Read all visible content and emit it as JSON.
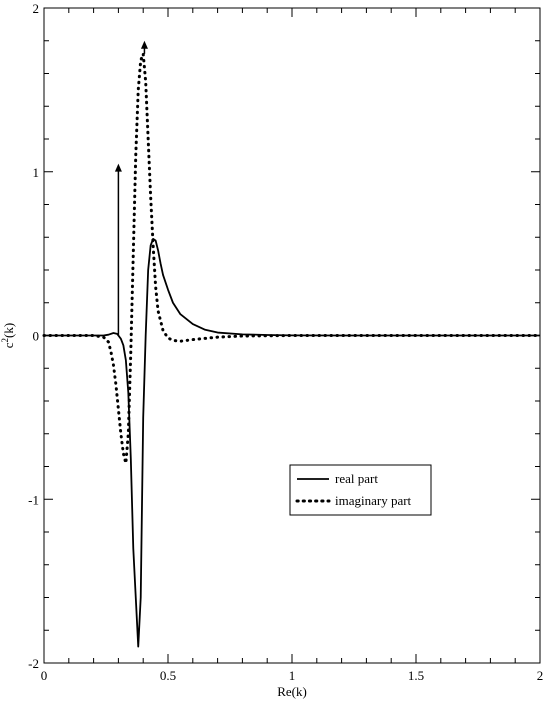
{
  "chart_data": {
    "type": "line",
    "xlabel": "Re(k)",
    "ylabel_base": "c",
    "ylabel_sup": "2",
    "ylabel_arg": "(k)",
    "xlim": [
      0,
      2
    ],
    "ylim": [
      -2,
      2
    ],
    "xticks": [
      0,
      0.5,
      1,
      1.5,
      2
    ],
    "xtick_labels": [
      "0",
      "0.5",
      "1",
      "1.5",
      "2"
    ],
    "yticks": [
      -2,
      -1,
      0,
      1,
      2
    ],
    "ytick_labels": [
      "-2",
      "-1",
      "0",
      "1",
      "2"
    ],
    "grid": false,
    "legend_position": "lower-right",
    "series": [
      {
        "name": "real part",
        "style": "solid",
        "color": "#000000",
        "x": [
          0,
          0.2,
          0.24,
          0.26,
          0.28,
          0.295,
          0.31,
          0.32,
          0.33,
          0.34,
          0.35,
          0.36,
          0.37,
          0.38,
          0.39,
          0.4,
          0.41,
          0.42,
          0.43,
          0.44,
          0.45,
          0.46,
          0.47,
          0.48,
          0.5,
          0.52,
          0.55,
          0.6,
          0.65,
          0.7,
          0.8,
          0.9,
          1.0,
          1.2,
          1.5,
          2.0
        ],
        "y": [
          0,
          0,
          0,
          0.005,
          0.015,
          0.01,
          -0.02,
          -0.06,
          -0.15,
          -0.35,
          -0.75,
          -1.3,
          -1.6,
          -1.9,
          -1.6,
          -0.5,
          0.0,
          0.4,
          0.55,
          0.59,
          0.58,
          0.52,
          0.44,
          0.37,
          0.28,
          0.2,
          0.13,
          0.07,
          0.035,
          0.018,
          0.007,
          0.003,
          0.001,
          0,
          0,
          0
        ]
      },
      {
        "name": "imaginary part",
        "style": "dotted",
        "color": "#000000",
        "x": [
          0,
          0.2,
          0.24,
          0.26,
          0.27,
          0.28,
          0.29,
          0.3,
          0.31,
          0.32,
          0.33,
          0.34,
          0.35,
          0.36,
          0.37,
          0.38,
          0.39,
          0.4,
          0.41,
          0.42,
          0.43,
          0.44,
          0.45,
          0.46,
          0.48,
          0.5,
          0.52,
          0.55,
          0.6,
          0.7,
          0.8,
          1.0,
          2.0
        ],
        "y": [
          0,
          0,
          -0.01,
          -0.04,
          -0.1,
          -0.18,
          -0.3,
          -0.45,
          -0.6,
          -0.72,
          -0.78,
          -0.6,
          -0.1,
          0.5,
          1.1,
          1.5,
          1.68,
          1.72,
          1.55,
          1.2,
          0.85,
          0.55,
          0.3,
          0.15,
          0.03,
          -0.015,
          -0.03,
          -0.035,
          -0.025,
          -0.01,
          -0.003,
          0,
          0
        ]
      }
    ],
    "annotations": [
      {
        "type": "arrow",
        "x": 0.3,
        "y_from": 0,
        "y_to": 1.05
      },
      {
        "type": "arrow",
        "x": 0.405,
        "y_from": 1.72,
        "y_to": 1.8
      }
    ]
  }
}
